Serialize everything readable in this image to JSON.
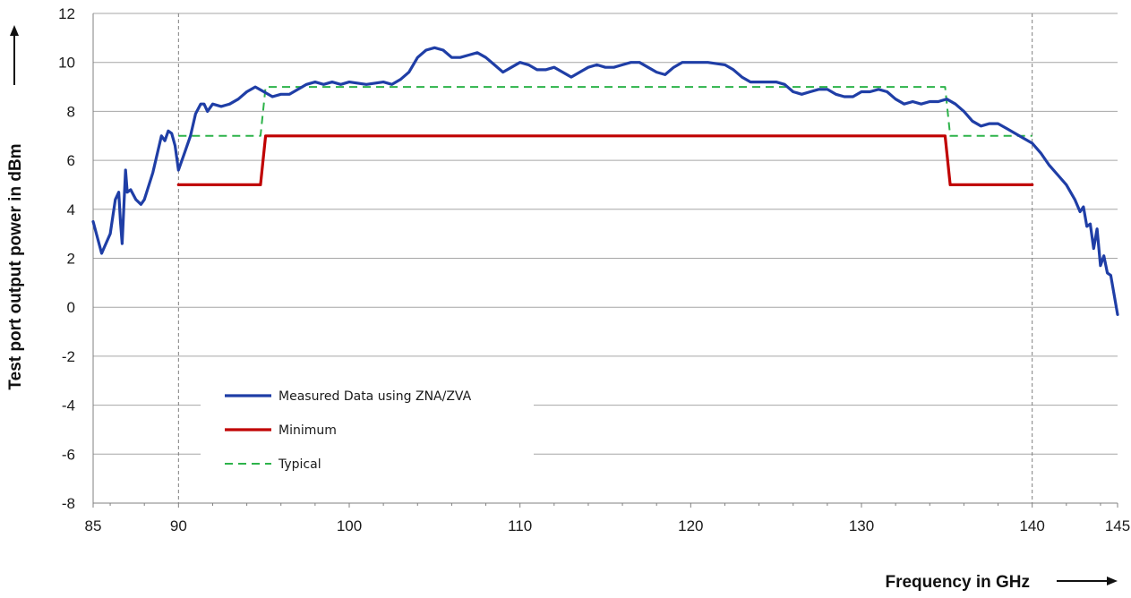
{
  "chart_data": {
    "type": "line",
    "xlabel": "Frequency in GHz",
    "ylabel": "Test port output power in dBm",
    "xlim": [
      85,
      145
    ],
    "ylim": [
      -8,
      12
    ],
    "x_ticks": [
      85,
      90,
      100,
      110,
      120,
      130,
      140,
      145
    ],
    "y_ticks": [
      -8,
      -6,
      -4,
      -2,
      0,
      2,
      4,
      6,
      8,
      10,
      12
    ],
    "vertical_reference_lines": [
      90,
      140
    ],
    "grid": "horizontal",
    "legend_position": "lower-left",
    "series": [
      {
        "name": "Measured Data using ZNA/ZVA",
        "color": "#1f3ea6",
        "style": "solid",
        "points": [
          [
            85.0,
            3.5
          ],
          [
            85.5,
            2.2
          ],
          [
            86.0,
            3.0
          ],
          [
            86.3,
            4.4
          ],
          [
            86.5,
            4.7
          ],
          [
            86.6,
            3.5
          ],
          [
            86.7,
            2.6
          ],
          [
            86.9,
            5.6
          ],
          [
            87.0,
            4.7
          ],
          [
            87.2,
            4.8
          ],
          [
            87.5,
            4.4
          ],
          [
            87.8,
            4.2
          ],
          [
            88.0,
            4.4
          ],
          [
            88.5,
            5.5
          ],
          [
            89.0,
            7.0
          ],
          [
            89.2,
            6.8
          ],
          [
            89.4,
            7.2
          ],
          [
            89.6,
            7.1
          ],
          [
            89.8,
            6.6
          ],
          [
            90.0,
            5.6
          ],
          [
            90.3,
            6.2
          ],
          [
            90.7,
            7.0
          ],
          [
            91.0,
            7.9
          ],
          [
            91.3,
            8.3
          ],
          [
            91.5,
            8.3
          ],
          [
            91.7,
            8.0
          ],
          [
            92.0,
            8.3
          ],
          [
            92.5,
            8.2
          ],
          [
            93.0,
            8.3
          ],
          [
            93.5,
            8.5
          ],
          [
            94.0,
            8.8
          ],
          [
            94.5,
            9.0
          ],
          [
            95.0,
            8.8
          ],
          [
            95.5,
            8.6
          ],
          [
            96.0,
            8.7
          ],
          [
            96.5,
            8.7
          ],
          [
            97.0,
            8.9
          ],
          [
            97.5,
            9.1
          ],
          [
            98.0,
            9.2
          ],
          [
            98.5,
            9.1
          ],
          [
            99.0,
            9.2
          ],
          [
            99.5,
            9.1
          ],
          [
            100.0,
            9.2
          ],
          [
            101.0,
            9.1
          ],
          [
            102.0,
            9.2
          ],
          [
            102.5,
            9.1
          ],
          [
            103.0,
            9.3
          ],
          [
            103.5,
            9.6
          ],
          [
            104.0,
            10.2
          ],
          [
            104.5,
            10.5
          ],
          [
            105.0,
            10.6
          ],
          [
            105.5,
            10.5
          ],
          [
            106.0,
            10.2
          ],
          [
            106.5,
            10.2
          ],
          [
            107.0,
            10.3
          ],
          [
            107.5,
            10.4
          ],
          [
            108.0,
            10.2
          ],
          [
            108.5,
            9.9
          ],
          [
            109.0,
            9.6
          ],
          [
            109.5,
            9.8
          ],
          [
            110.0,
            10.0
          ],
          [
            110.5,
            9.9
          ],
          [
            111.0,
            9.7
          ],
          [
            111.5,
            9.7
          ],
          [
            112.0,
            9.8
          ],
          [
            112.5,
            9.6
          ],
          [
            113.0,
            9.4
          ],
          [
            113.5,
            9.6
          ],
          [
            114.0,
            9.8
          ],
          [
            114.5,
            9.9
          ],
          [
            115.0,
            9.8
          ],
          [
            115.5,
            9.8
          ],
          [
            116.0,
            9.9
          ],
          [
            116.5,
            10.0
          ],
          [
            117.0,
            10.0
          ],
          [
            117.5,
            9.8
          ],
          [
            118.0,
            9.6
          ],
          [
            118.5,
            9.5
          ],
          [
            119.0,
            9.8
          ],
          [
            119.5,
            10.0
          ],
          [
            120.0,
            10.0
          ],
          [
            120.5,
            10.0
          ],
          [
            121.0,
            10.0
          ],
          [
            122.0,
            9.9
          ],
          [
            122.5,
            9.7
          ],
          [
            123.0,
            9.4
          ],
          [
            123.5,
            9.2
          ],
          [
            124.0,
            9.2
          ],
          [
            124.5,
            9.2
          ],
          [
            125.0,
            9.2
          ],
          [
            125.5,
            9.1
          ],
          [
            126.0,
            8.8
          ],
          [
            126.5,
            8.7
          ],
          [
            127.0,
            8.8
          ],
          [
            127.5,
            8.9
          ],
          [
            128.0,
            8.9
          ],
          [
            128.5,
            8.7
          ],
          [
            129.0,
            8.6
          ],
          [
            129.5,
            8.6
          ],
          [
            130.0,
            8.8
          ],
          [
            130.5,
            8.8
          ],
          [
            131.0,
            8.9
          ],
          [
            131.5,
            8.8
          ],
          [
            132.0,
            8.5
          ],
          [
            132.5,
            8.3
          ],
          [
            133.0,
            8.4
          ],
          [
            133.5,
            8.3
          ],
          [
            134.0,
            8.4
          ],
          [
            134.5,
            8.4
          ],
          [
            135.0,
            8.5
          ],
          [
            135.5,
            8.3
          ],
          [
            136.0,
            8.0
          ],
          [
            136.5,
            7.6
          ],
          [
            137.0,
            7.4
          ],
          [
            137.5,
            7.5
          ],
          [
            138.0,
            7.5
          ],
          [
            138.5,
            7.3
          ],
          [
            139.0,
            7.1
          ],
          [
            139.5,
            6.9
          ],
          [
            140.0,
            6.7
          ],
          [
            140.5,
            6.3
          ],
          [
            141.0,
            5.8
          ],
          [
            141.5,
            5.4
          ],
          [
            142.0,
            5.0
          ],
          [
            142.5,
            4.4
          ],
          [
            142.8,
            3.9
          ],
          [
            143.0,
            4.1
          ],
          [
            143.2,
            3.3
          ],
          [
            143.4,
            3.4
          ],
          [
            143.6,
            2.4
          ],
          [
            143.8,
            3.2
          ],
          [
            144.0,
            1.7
          ],
          [
            144.2,
            2.1
          ],
          [
            144.4,
            1.4
          ],
          [
            144.6,
            1.3
          ],
          [
            144.8,
            0.5
          ],
          [
            145.0,
            -0.3
          ]
        ]
      },
      {
        "name": "Minimum",
        "color": "#c00000",
        "style": "solid",
        "points": [
          [
            90,
            5
          ],
          [
            94.8,
            5
          ],
          [
            95.1,
            7
          ],
          [
            134.9,
            7
          ],
          [
            135.2,
            5
          ],
          [
            140,
            5
          ]
        ]
      },
      {
        "name": "Typical",
        "color": "#2db34a",
        "style": "dashed",
        "points": [
          [
            90,
            7
          ],
          [
            94.8,
            7
          ],
          [
            95.1,
            9
          ],
          [
            134.9,
            9
          ],
          [
            135.2,
            7
          ],
          [
            140,
            7
          ]
        ]
      }
    ]
  }
}
